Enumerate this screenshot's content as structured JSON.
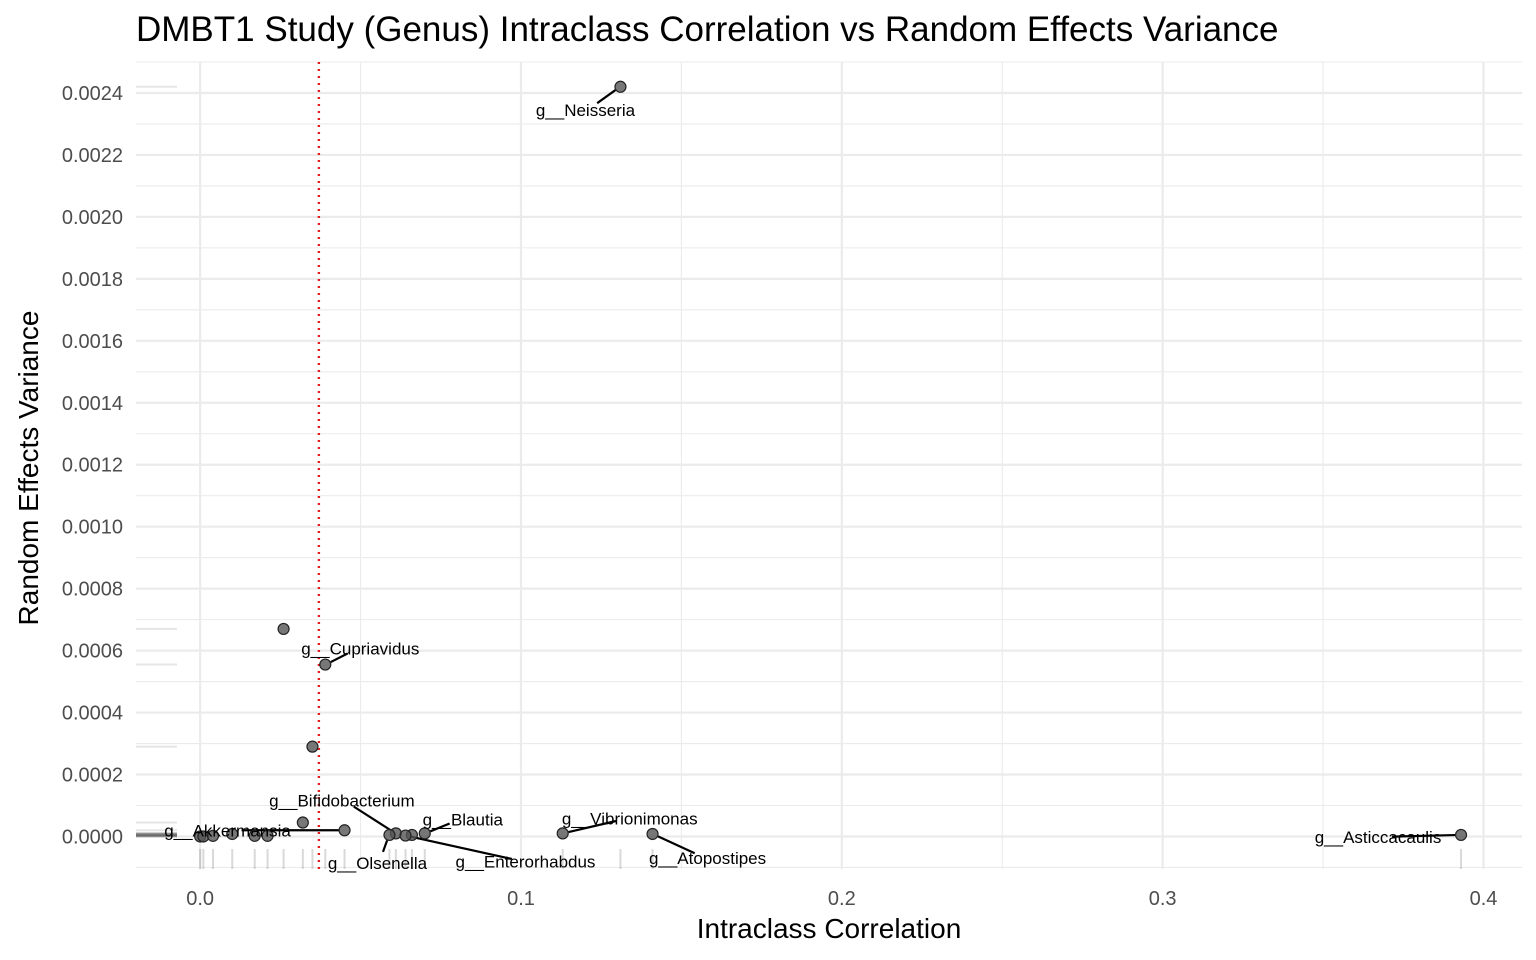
{
  "chart_data": {
    "type": "scatter",
    "title": "DMBT1 Study (Genus) Intraclass Correlation vs Random Effects Variance",
    "xlabel": "Intraclass Correlation",
    "ylabel": "Random Effects Variance",
    "xlim": [
      -0.02,
      0.412
    ],
    "ylim": [
      -0.000105,
      0.0025
    ],
    "x_ticks": [
      0.0,
      0.1,
      0.2,
      0.3,
      0.4
    ],
    "x_tick_labels": [
      "0.0",
      "0.1",
      "0.2",
      "0.3",
      "0.4"
    ],
    "y_ticks": [
      0.0,
      0.0002,
      0.0004,
      0.0006,
      0.0008,
      0.001,
      0.0012,
      0.0014,
      0.0016,
      0.0018,
      0.002,
      0.0022,
      0.0024
    ],
    "y_tick_labels": [
      "0.0000",
      "0.0002",
      "0.0004",
      "0.0006",
      "0.0008",
      "0.0010",
      "0.0012",
      "0.0014",
      "0.0016",
      "0.0018",
      "0.0020",
      "0.0022",
      "0.0024"
    ],
    "threshold_x": 0.037,
    "threshold_color": "#e41a1c",
    "point_color": "#555555",
    "grid": true,
    "rug": true,
    "points": [
      {
        "x": 0.131,
        "y": 0.00242,
        "label": "g__Neisseria"
      },
      {
        "x": 0.026,
        "y": 0.00067,
        "label": ""
      },
      {
        "x": 0.039,
        "y": 0.000555,
        "label": "g__Cupriavidus"
      },
      {
        "x": 0.035,
        "y": 0.00029,
        "label": ""
      },
      {
        "x": 0.032,
        "y": 4.5e-05,
        "label": ""
      },
      {
        "x": 0.045,
        "y": 2e-05,
        "label": "g__Akkermansia"
      },
      {
        "x": 0.061,
        "y": 1e-05,
        "label": "g__Bifidobacterium"
      },
      {
        "x": 0.059,
        "y": 5e-06,
        "label": "g__Olsenella"
      },
      {
        "x": 0.066,
        "y": 5e-06,
        "label": ""
      },
      {
        "x": 0.07,
        "y": 1e-05,
        "label": "g__Blautia"
      },
      {
        "x": 0.064,
        "y": 3e-06,
        "label": "g__Enterorhabdus"
      },
      {
        "x": 0.113,
        "y": 1e-05,
        "label": "g__Vibrionimonas"
      },
      {
        "x": 0.141,
        "y": 8e-06,
        "label": "g__Atopostipes"
      },
      {
        "x": 0.393,
        "y": 5e-06,
        "label": "g__Asticcacaulis"
      },
      {
        "x": 0.0,
        "y": 0.0,
        "label": ""
      },
      {
        "x": 0.001,
        "y": 0.0,
        "label": ""
      },
      {
        "x": 0.004,
        "y": 2e-06,
        "label": ""
      },
      {
        "x": 0.01,
        "y": 8e-06,
        "label": ""
      },
      {
        "x": 0.017,
        "y": 2e-06,
        "label": ""
      },
      {
        "x": 0.021,
        "y": 2e-06,
        "label": ""
      }
    ]
  }
}
